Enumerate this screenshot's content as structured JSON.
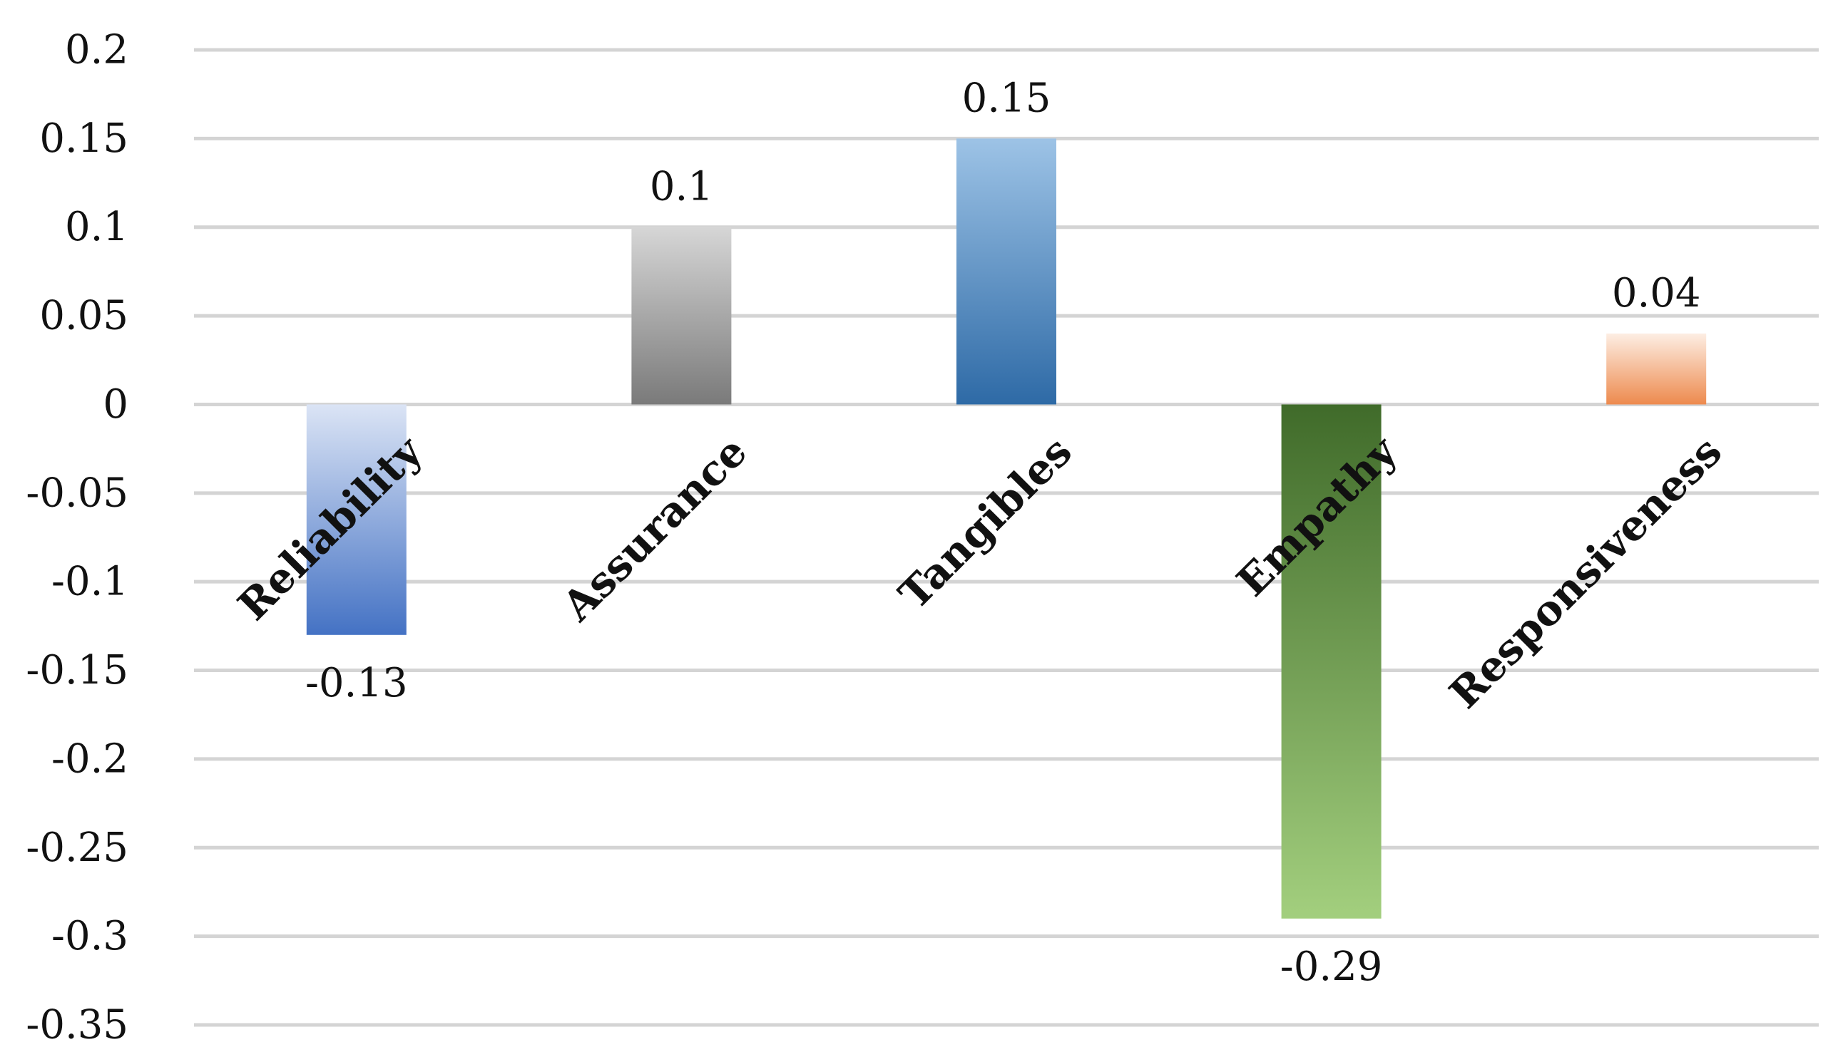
{
  "chart_data": {
    "type": "bar",
    "title": "",
    "xlabel": "",
    "ylabel": "",
    "categories": [
      "Reliability",
      "Assurance",
      "Tangibles",
      "Empathy",
      "Responsiveness"
    ],
    "values": [
      -0.13,
      0.1,
      0.15,
      -0.29,
      0.04
    ],
    "data_labels": [
      "-0.13",
      "0.1",
      "0.15",
      "-0.29",
      "0.04"
    ],
    "yticks": [
      0.2,
      0.15,
      0.1,
      0.05,
      0,
      -0.05,
      -0.1,
      -0.15,
      -0.2,
      -0.25,
      -0.3,
      -0.35
    ],
    "ytick_labels": [
      "0.2",
      "0.15",
      "0.1",
      "0.05",
      "0",
      "-0.05",
      "-0.1",
      "-0.15",
      "-0.2",
      "-0.25",
      "-0.3",
      "-0.35"
    ],
    "ylim": [
      -0.35,
      0.2
    ],
    "grid": true,
    "legend": "none",
    "bar_colors": [
      {
        "light": "#dbe4f5",
        "dark": "#4472c4"
      },
      {
        "light": "#d6d6d6",
        "dark": "#7a7a7a"
      },
      {
        "light": "#9dc3e6",
        "dark": "#2e6aa6"
      },
      {
        "light": "#406b2a",
        "dark": "#a3cf7e"
      },
      {
        "light": "#fdeee3",
        "dark": "#ed8a4e"
      }
    ]
  }
}
